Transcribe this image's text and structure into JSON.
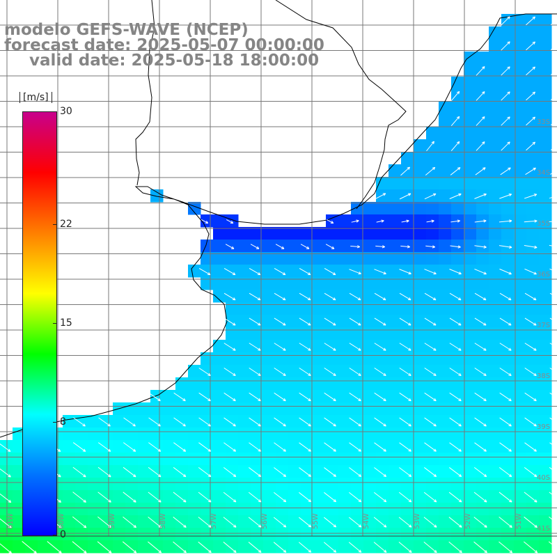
{
  "title": {
    "line1": "modelo GEFS-WAVE (NCEP)",
    "line2": "forecast date: 2025-05-07 00:00:00",
    "line3": "valid date: 2025-05-18 18:00:00"
  },
  "colorbar": {
    "unit": "[m/s]",
    "min": 0,
    "max": 30,
    "ticks": [
      {
        "value": 30,
        "label": "30"
      },
      {
        "value": 22,
        "label": "22"
      },
      {
        "value": 15,
        "label": "15"
      },
      {
        "value": 8,
        "label": "8"
      },
      {
        "value": 0,
        "label": "0"
      }
    ],
    "colors": [
      "#0000ff",
      "#0073ff",
      "#00ffff",
      "#00ff00",
      "#ffff00",
      "#ff7f00",
      "#ff0000",
      "#c8008c"
    ]
  },
  "map": {
    "variable": "wind speed with direction arrows",
    "lon_labels": [
      "61W",
      "60W",
      "59W",
      "58W",
      "57W",
      "56W",
      "55W",
      "54W",
      "53W",
      "52W",
      "51W"
    ],
    "lat_labels": [
      "33S",
      "34S",
      "35S",
      "36S",
      "37S",
      "38S",
      "39S",
      "40S",
      "41S"
    ],
    "colors": {
      "land": "#ffffff",
      "grid": "#777777",
      "coast": "#000000",
      "arrow": "#ffffff"
    }
  }
}
